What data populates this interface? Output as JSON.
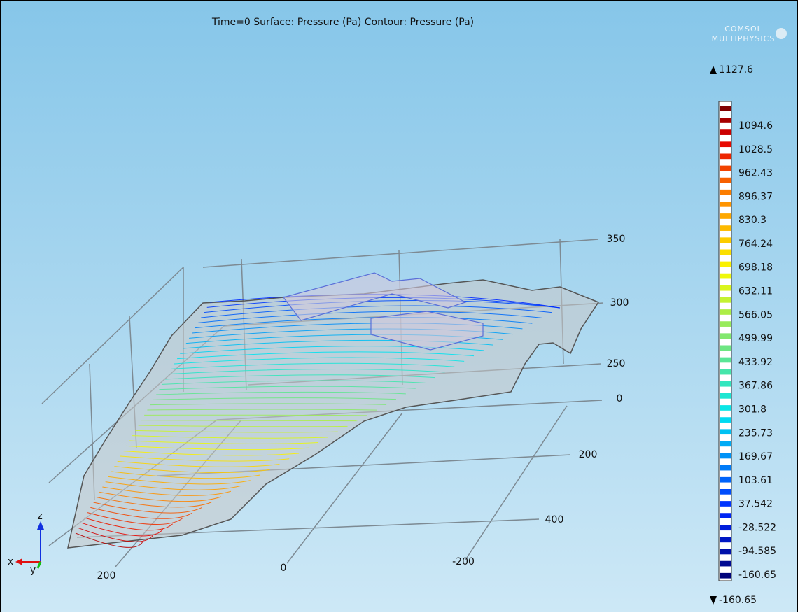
{
  "title": "Time=0  Surface: Pressure (Pa)  Contour: Pressure (Pa)",
  "logo": {
    "line1": "COMSOL",
    "line2": "MULTIPHYSICS"
  },
  "colorbar": {
    "max": "1127.6",
    "min": "-160.65",
    "labels": [
      "1094.6",
      "1028.5",
      "962.43",
      "896.37",
      "830.3",
      "764.24",
      "698.18",
      "632.11",
      "566.05",
      "499.99",
      "433.92",
      "367.86",
      "301.8",
      "235.73",
      "169.67",
      "103.61",
      "37.542",
      "-28.522",
      "-94.585",
      "-160.65"
    ]
  },
  "axes": {
    "z_labels": [
      "350",
      "300",
      "250"
    ],
    "y_labels": [
      "0",
      "200",
      "400"
    ],
    "x_labels": [
      "200",
      "0",
      "-200"
    ]
  },
  "triad": {
    "z": "z",
    "x": "x",
    "y": "y"
  }
}
